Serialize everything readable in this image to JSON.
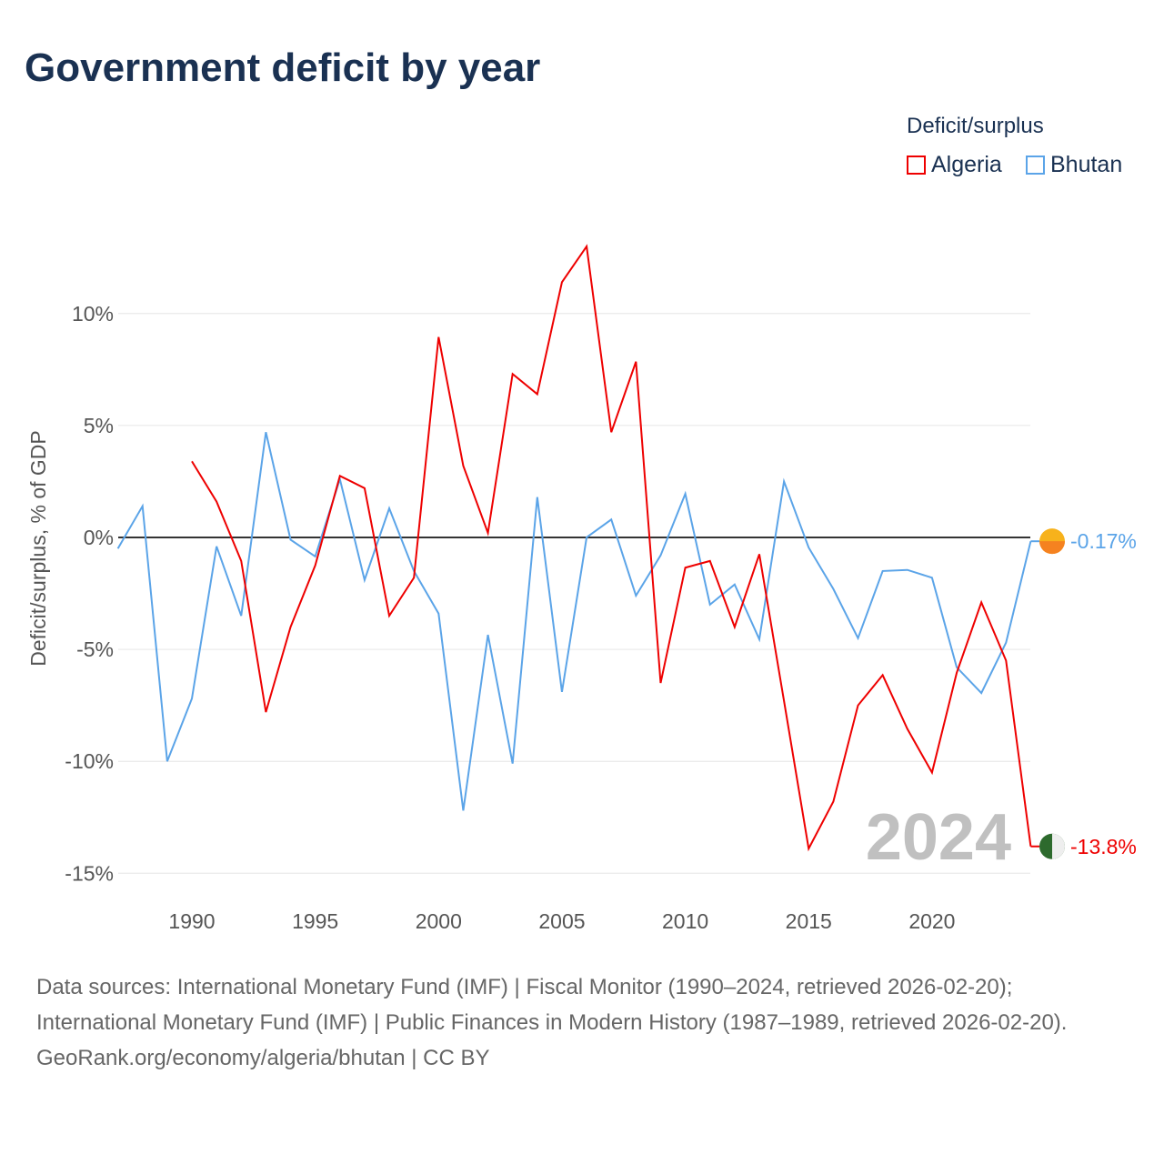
{
  "title": "Government deficit by year",
  "legend": {
    "title": "Deficit/surplus",
    "items": [
      "Algeria",
      "Bhutan"
    ]
  },
  "footer": {
    "sources": "Data sources: International Monetary Fund (IMF) | Fiscal Monitor (1990–2024, retrieved 2026-02-20); International Monetary Fund (IMF) | Public Finances in Modern History (1987–1989, retrieved 2026-02-20).",
    "credit": "GeoRank.org/economy/algeria/bhutan | CC BY"
  },
  "chart_data": {
    "type": "line",
    "title": "Government deficit by year",
    "ylabel": "Deficit/surplus, % of GDP",
    "xlabel": "",
    "ylim": [
      -16,
      14
    ],
    "xlim": [
      1987,
      2024
    ],
    "yticks": [
      10,
      5,
      0,
      -5,
      -10,
      -15
    ],
    "ytick_labels": [
      "10%",
      "5%",
      "0%",
      "-5%",
      "-10%",
      "-15%"
    ],
    "xticks": [
      1990,
      1995,
      2000,
      2005,
      2010,
      2015,
      2020
    ],
    "year_label": "2024",
    "legend_position": "top-right",
    "series": [
      {
        "name": "Algeria",
        "color": "#ee0000",
        "end_label": "-13.8%",
        "x": [
          1990,
          1991,
          1992,
          1993,
          1994,
          1995,
          1996,
          1997,
          1998,
          1999,
          2000,
          2001,
          2002,
          2003,
          2004,
          2005,
          2006,
          2007,
          2008,
          2009,
          2010,
          2011,
          2012,
          2013,
          2014,
          2015,
          2016,
          2017,
          2018,
          2019,
          2020,
          2021,
          2022,
          2023,
          2024
        ],
        "values": [
          3.4,
          1.6,
          -1.05,
          -7.8,
          -4.0,
          -1.25,
          2.75,
          2.2,
          -3.5,
          -1.8,
          8.95,
          3.2,
          0.2,
          7.3,
          6.4,
          11.4,
          13.0,
          4.7,
          7.85,
          -6.5,
          -1.35,
          -1.05,
          -4.0,
          -0.75,
          -7.3,
          -13.9,
          -11.8,
          -7.5,
          -6.15,
          -8.55,
          -10.5,
          -6.05,
          -2.9,
          -5.5,
          -13.8
        ]
      },
      {
        "name": "Bhutan",
        "color": "#5ba4e8",
        "end_label": "-0.17%",
        "x": [
          1987,
          1988,
          1989,
          1990,
          1991,
          1992,
          1993,
          1994,
          1995,
          1996,
          1997,
          1998,
          1999,
          2000,
          2001,
          2002,
          2003,
          2004,
          2005,
          2006,
          2007,
          2008,
          2009,
          2010,
          2011,
          2012,
          2013,
          2014,
          2015,
          2016,
          2017,
          2018,
          2019,
          2020,
          2021,
          2022,
          2023,
          2024
        ],
        "values": [
          -0.5,
          1.4,
          -10.0,
          -7.2,
          -0.4,
          -3.5,
          4.7,
          -0.1,
          -0.85,
          2.6,
          -1.9,
          1.3,
          -1.5,
          -3.4,
          -12.2,
          -4.35,
          -10.1,
          1.8,
          -6.9,
          0,
          0.8,
          -2.6,
          -0.8,
          1.95,
          -3.0,
          -2.1,
          -4.55,
          2.5,
          -0.45,
          -2.3,
          -4.5,
          -1.5,
          -1.45,
          -1.8,
          -5.8,
          -6.95,
          -4.7,
          -0.17
        ]
      }
    ]
  }
}
